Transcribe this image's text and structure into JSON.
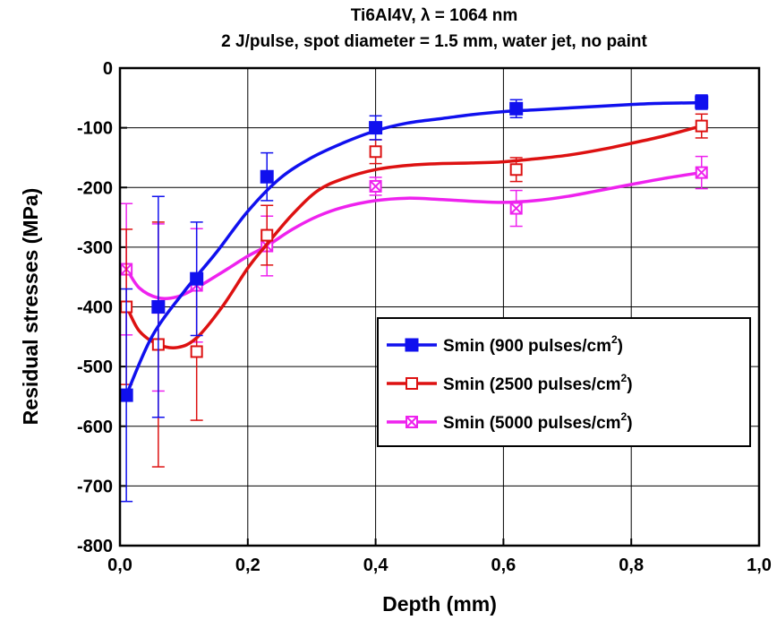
{
  "chart_data": {
    "type": "line",
    "title": "Ti6Al4V, λ = 1064 nm",
    "subtitle": "2 J/pulse, spot diameter = 1.5 mm, water jet, no paint",
    "xlabel": "Depth (mm)",
    "ylabel": "Residual stresses (MPa)",
    "xlim": [
      0,
      1.0
    ],
    "ylim": [
      -800,
      0
    ],
    "xticks": [
      0,
      0.2,
      0.4,
      0.6,
      0.8,
      1.0
    ],
    "xtick_labels": [
      "0,0",
      "0,2",
      "0,4",
      "0,6",
      "0,8",
      "1,0"
    ],
    "yticks": [
      0,
      -100,
      -200,
      -300,
      -400,
      -500,
      -600,
      -700,
      -800
    ],
    "ytick_labels": [
      "0",
      "-100",
      "-200",
      "-300",
      "-400",
      "-500",
      "-600",
      "-700",
      "-800"
    ],
    "grid": true,
    "legend_position": "right",
    "series": [
      {
        "name": "Smin (900 pulses/cm²)",
        "legend_main": "Smin (900 pulses/cm",
        "legend_sup": "2",
        "legend_end": ")",
        "color": "#1010ee",
        "marker": "filled-square",
        "x": [
          0.01,
          0.06,
          0.12,
          0.23,
          0.4,
          0.62,
          0.91
        ],
        "y": [
          -548,
          -400,
          -353,
          -182,
          -100,
          -68,
          -57
        ],
        "err": [
          178,
          185,
          95,
          40,
          20,
          15,
          12
        ],
        "fit": [
          [
            0.01,
            -548
          ],
          [
            0.05,
            -450
          ],
          [
            0.1,
            -375
          ],
          [
            0.15,
            -310
          ],
          [
            0.2,
            -240
          ],
          [
            0.25,
            -185
          ],
          [
            0.3,
            -150
          ],
          [
            0.35,
            -125
          ],
          [
            0.4,
            -105
          ],
          [
            0.45,
            -92
          ],
          [
            0.5,
            -85
          ],
          [
            0.55,
            -78
          ],
          [
            0.6,
            -73
          ],
          [
            0.65,
            -70
          ],
          [
            0.7,
            -67
          ],
          [
            0.75,
            -64
          ],
          [
            0.8,
            -61
          ],
          [
            0.85,
            -59
          ],
          [
            0.91,
            -58
          ]
        ]
      },
      {
        "name": "Smin (2500 pulses/cm²)",
        "legend_main": "Smin (2500 pulses/cm",
        "legend_sup": "2",
        "legend_end": ")",
        "color": "#dd1111",
        "marker": "open-square",
        "x": [
          0.01,
          0.06,
          0.12,
          0.23,
          0.4,
          0.62,
          0.91
        ],
        "y": [
          -400,
          -463,
          -475,
          -280,
          -140,
          -170,
          -97
        ],
        "err": [
          130,
          205,
          115,
          50,
          20,
          20,
          20
        ],
        "fit": [
          [
            0.01,
            -398
          ],
          [
            0.03,
            -440
          ],
          [
            0.06,
            -463
          ],
          [
            0.09,
            -468
          ],
          [
            0.12,
            -452
          ],
          [
            0.16,
            -400
          ],
          [
            0.2,
            -335
          ],
          [
            0.23,
            -295
          ],
          [
            0.27,
            -245
          ],
          [
            0.31,
            -205
          ],
          [
            0.35,
            -185
          ],
          [
            0.4,
            -170
          ],
          [
            0.45,
            -163
          ],
          [
            0.5,
            -160
          ],
          [
            0.55,
            -159
          ],
          [
            0.6,
            -157
          ],
          [
            0.65,
            -152
          ],
          [
            0.7,
            -146
          ],
          [
            0.75,
            -137
          ],
          [
            0.8,
            -126
          ],
          [
            0.85,
            -114
          ],
          [
            0.91,
            -97
          ]
        ]
      },
      {
        "name": "Smin (5000 pulses/cm²)",
        "legend_main": "Smin (5000 pulses/cm",
        "legend_sup": "2",
        "legend_end": ")",
        "color": "#ee22ee",
        "marker": "crossed-square",
        "x": [
          0.01,
          0.06,
          0.12,
          0.23,
          0.4,
          0.62,
          0.91
        ],
        "y": [
          -337,
          -401,
          -364,
          -298,
          -198,
          -235,
          -175
        ],
        "err": [
          110,
          140,
          95,
          50,
          15,
          30,
          27
        ],
        "fit": [
          [
            0.01,
            -335
          ],
          [
            0.03,
            -368
          ],
          [
            0.06,
            -385
          ],
          [
            0.09,
            -383
          ],
          [
            0.12,
            -368
          ],
          [
            0.16,
            -342
          ],
          [
            0.2,
            -315
          ],
          [
            0.23,
            -298
          ],
          [
            0.27,
            -270
          ],
          [
            0.31,
            -248
          ],
          [
            0.35,
            -233
          ],
          [
            0.4,
            -222
          ],
          [
            0.45,
            -218
          ],
          [
            0.5,
            -220
          ],
          [
            0.55,
            -223
          ],
          [
            0.6,
            -225
          ],
          [
            0.65,
            -222
          ],
          [
            0.7,
            -215
          ],
          [
            0.75,
            -205
          ],
          [
            0.8,
            -195
          ],
          [
            0.85,
            -185
          ],
          [
            0.91,
            -175
          ]
        ]
      }
    ]
  }
}
